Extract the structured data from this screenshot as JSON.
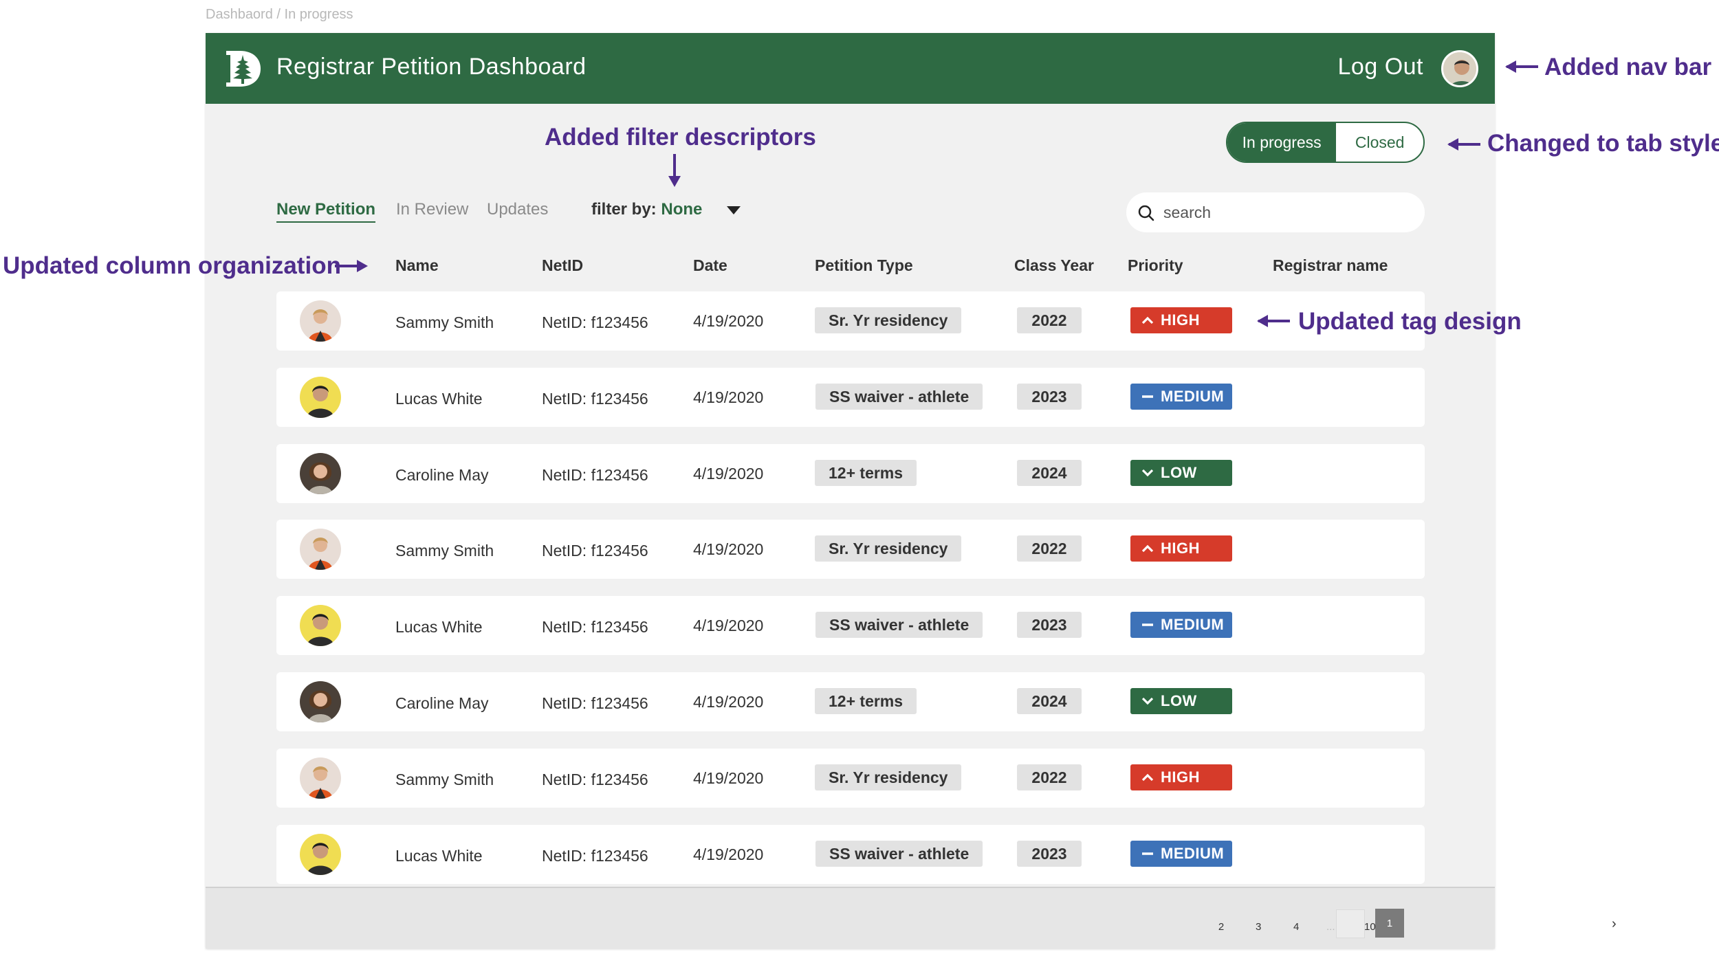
{
  "breadcrumb": "Dashbaord / In progress",
  "nav": {
    "title": "Registrar Petition Dashboard",
    "logout": "Log Out"
  },
  "status_tabs": {
    "active": "In progress",
    "inactive": "Closed"
  },
  "filter_tabs": [
    "New Petition",
    "In Review",
    "Updates"
  ],
  "filter": {
    "label": "filter by:",
    "value": "None"
  },
  "search": {
    "placeholder": "search"
  },
  "columns": [
    "Name",
    "NetID",
    "Date",
    "Petition Type",
    "Class Year",
    "Priority",
    "Registrar name"
  ],
  "rows": [
    {
      "name": "Sammy Smith",
      "netid": "NetID: f123456",
      "date": "4/19/2020",
      "type": "Sr. Yr residency",
      "year": "2022",
      "priority": "HIGH"
    },
    {
      "name": "Lucas White",
      "netid": "NetID: f123456",
      "date": "4/19/2020",
      "type": "SS waiver - athlete",
      "year": "2023",
      "priority": "MEDIUM"
    },
    {
      "name": "Caroline May",
      "netid": "NetID: f123456",
      "date": "4/19/2020",
      "type": "12+ terms",
      "year": "2024",
      "priority": "LOW"
    },
    {
      "name": "Sammy Smith",
      "netid": "NetID: f123456",
      "date": "4/19/2020",
      "type": "Sr. Yr residency",
      "year": "2022",
      "priority": "HIGH"
    },
    {
      "name": "Lucas White",
      "netid": "NetID: f123456",
      "date": "4/19/2020",
      "type": "SS waiver - athlete",
      "year": "2023",
      "priority": "MEDIUM"
    },
    {
      "name": "Caroline May",
      "netid": "NetID: f123456",
      "date": "4/19/2020",
      "type": "12+ terms",
      "year": "2024",
      "priority": "LOW"
    },
    {
      "name": "Sammy Smith",
      "netid": "NetID: f123456",
      "date": "4/19/2020",
      "type": "Sr. Yr residency",
      "year": "2022",
      "priority": "HIGH"
    },
    {
      "name": "Lucas White",
      "netid": "NetID: f123456",
      "date": "4/19/2020",
      "type": "SS waiver - athlete",
      "year": "2023",
      "priority": "MEDIUM"
    }
  ],
  "pagination": {
    "current": "1",
    "pages": [
      "2",
      "3",
      "4"
    ],
    "ellipsis": "...",
    "last": "10"
  },
  "annotations": {
    "nav_bar": "Added nav bar",
    "tab_style": "Changed to tab style",
    "filter_descriptors": "Added filter descriptors",
    "column_org": "Updated column organization",
    "tag_design": "Updated tag design"
  },
  "colors": {
    "brand_green": "#2e6a43",
    "high": "#d63b2a",
    "medium": "#3d72b8",
    "low": "#2e6a43",
    "annotation_purple": "#4f2d8c"
  },
  "icons": [
    "pine-tree-logo-icon",
    "search-icon",
    "caret-down-icon",
    "chevron-up-icon",
    "dash-icon",
    "chevron-down-icon",
    "chevron-right-icon"
  ]
}
